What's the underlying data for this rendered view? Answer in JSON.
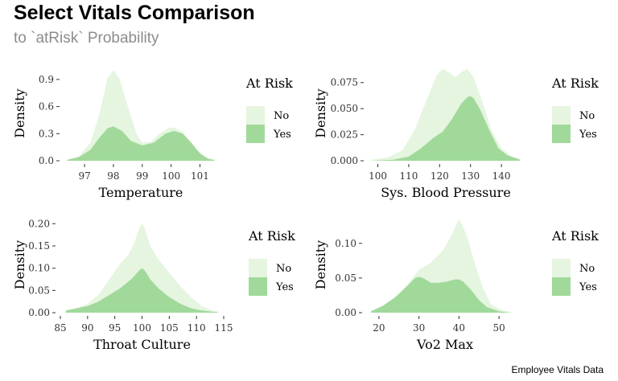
{
  "header": {
    "title": "Select Vitals Comparison",
    "subtitle": "to `atRisk` Probability"
  },
  "caption": "Employee Vitals Data",
  "colors": {
    "no": "#e5f5e0",
    "yes": "#a1d99b",
    "axis": "#333333"
  },
  "chart_data": [
    {
      "type": "area",
      "xlabel": "Temperature",
      "ylabel": "Density",
      "xlim": [
        96.3,
        101.6
      ],
      "ylim": [
        0,
        1.05
      ],
      "xticks": [
        97,
        98,
        99,
        100,
        101
      ],
      "yticks": [
        0.0,
        0.3,
        0.6,
        0.9
      ],
      "ytick_labels": [
        "0.0",
        "0.3",
        "0.6",
        "0.9"
      ],
      "legend": {
        "title": "At Risk",
        "entries": [
          "No",
          "Yes"
        ]
      },
      "series": [
        {
          "name": "No",
          "x": [
            96.4,
            96.8,
            97.2,
            97.5,
            97.8,
            98.0,
            98.2,
            98.5,
            98.8,
            99.0,
            99.3,
            99.6,
            99.9,
            100.1,
            100.4,
            100.8,
            101.2,
            101.5
          ],
          "y": [
            0.01,
            0.05,
            0.2,
            0.5,
            0.92,
            1.0,
            0.92,
            0.6,
            0.3,
            0.2,
            0.21,
            0.3,
            0.36,
            0.37,
            0.32,
            0.15,
            0.04,
            0.01
          ]
        },
        {
          "name": "Yes",
          "x": [
            96.4,
            96.8,
            97.2,
            97.5,
            97.8,
            98.0,
            98.3,
            98.6,
            99.0,
            99.4,
            99.8,
            100.1,
            100.4,
            100.7,
            101.0,
            101.3,
            101.5
          ],
          "y": [
            0.01,
            0.04,
            0.12,
            0.25,
            0.36,
            0.38,
            0.33,
            0.22,
            0.17,
            0.2,
            0.3,
            0.33,
            0.3,
            0.2,
            0.08,
            0.02,
            0.01
          ]
        }
      ]
    },
    {
      "type": "area",
      "xlabel": "Sys. Blood Pressure",
      "ylabel": "Density",
      "xlim": [
        97,
        147
      ],
      "ylim": [
        0,
        0.091
      ],
      "xticks": [
        100,
        110,
        120,
        130,
        140
      ],
      "yticks": [
        0.0,
        0.025,
        0.05,
        0.075
      ],
      "ytick_labels": [
        "0.000",
        "0.025",
        "0.050",
        "0.075"
      ],
      "legend": {
        "title": "At Risk",
        "entries": [
          "No",
          "Yes"
        ]
      },
      "series": [
        {
          "name": "No",
          "x": [
            98,
            103,
            108,
            112,
            116,
            119,
            121,
            123,
            125,
            127,
            129,
            131,
            134,
            137,
            140,
            143,
            146
          ],
          "y": [
            0.001,
            0.003,
            0.01,
            0.03,
            0.06,
            0.082,
            0.088,
            0.085,
            0.08,
            0.085,
            0.088,
            0.08,
            0.055,
            0.028,
            0.012,
            0.005,
            0.002
          ]
        },
        {
          "name": "Yes",
          "x": [
            98,
            105,
            110,
            114,
            118,
            121,
            124,
            127,
            129,
            130,
            131,
            133,
            136,
            139,
            142,
            146
          ],
          "y": [
            0.0,
            0.001,
            0.004,
            0.012,
            0.022,
            0.028,
            0.04,
            0.055,
            0.061,
            0.062,
            0.06,
            0.05,
            0.03,
            0.012,
            0.005,
            0.001
          ]
        }
      ]
    },
    {
      "type": "area",
      "xlabel": "Throat Culture",
      "ylabel": "Density",
      "xlim": [
        85,
        115
      ],
      "ylim": [
        0,
        0.215
      ],
      "xticks": [
        85,
        90,
        95,
        100,
        105,
        110,
        115
      ],
      "yticks": [
        0.0,
        0.05,
        0.1,
        0.15,
        0.2
      ],
      "ytick_labels": [
        "0.00",
        "0.05",
        "0.10",
        "0.15",
        "0.20"
      ],
      "legend": {
        "title": "At Risk",
        "entries": [
          "No",
          "Yes"
        ]
      },
      "series": [
        {
          "name": "No",
          "x": [
            86,
            88,
            90,
            92,
            94,
            96,
            97.5,
            98.5,
            99.5,
            100,
            100.5,
            101.5,
            103,
            105,
            107,
            109,
            111,
            113,
            114
          ],
          "y": [
            0.005,
            0.01,
            0.02,
            0.04,
            0.075,
            0.11,
            0.13,
            0.155,
            0.19,
            0.2,
            0.19,
            0.15,
            0.12,
            0.09,
            0.06,
            0.035,
            0.015,
            0.005,
            0.002
          ]
        },
        {
          "name": "Yes",
          "x": [
            86,
            88,
            90,
            92,
            94,
            96,
            98,
            99.5,
            100,
            100.5,
            101.5,
            103,
            105,
            107,
            109,
            111,
            113,
            114
          ],
          "y": [
            0.005,
            0.01,
            0.015,
            0.025,
            0.04,
            0.055,
            0.075,
            0.095,
            0.1,
            0.095,
            0.075,
            0.055,
            0.035,
            0.02,
            0.01,
            0.005,
            0.002,
            0.001
          ]
        }
      ]
    },
    {
      "type": "area",
      "xlabel": "Vo2 Max",
      "ylabel": "Density",
      "xlim": [
        17,
        56
      ],
      "ylim": [
        0,
        0.138
      ],
      "xticks": [
        20,
        30,
        40,
        50
      ],
      "yticks": [
        0.0,
        0.05,
        0.1
      ],
      "ytick_labels": [
        "0.00",
        "0.05",
        "0.10"
      ],
      "legend": {
        "title": "At Risk",
        "entries": [
          "No",
          "Yes"
        ]
      },
      "series": [
        {
          "name": "No",
          "x": [
            18,
            21,
            24,
            27,
            30,
            33,
            36,
            38,
            39.5,
            40,
            40.5,
            42,
            44,
            46,
            48,
            51,
            54
          ],
          "y": [
            0.002,
            0.008,
            0.02,
            0.04,
            0.062,
            0.072,
            0.09,
            0.11,
            0.13,
            0.135,
            0.13,
            0.11,
            0.07,
            0.035,
            0.012,
            0.003,
            0.0
          ]
        },
        {
          "name": "Yes",
          "x": [
            18,
            21,
            24,
            27,
            29,
            30,
            31,
            33,
            35,
            37,
            39,
            40,
            41,
            43,
            45,
            47,
            50,
            53,
            54
          ],
          "y": [
            0.002,
            0.01,
            0.022,
            0.038,
            0.05,
            0.052,
            0.05,
            0.043,
            0.043,
            0.045,
            0.048,
            0.048,
            0.045,
            0.033,
            0.018,
            0.008,
            0.002,
            0.0,
            0.0
          ]
        }
      ]
    }
  ]
}
